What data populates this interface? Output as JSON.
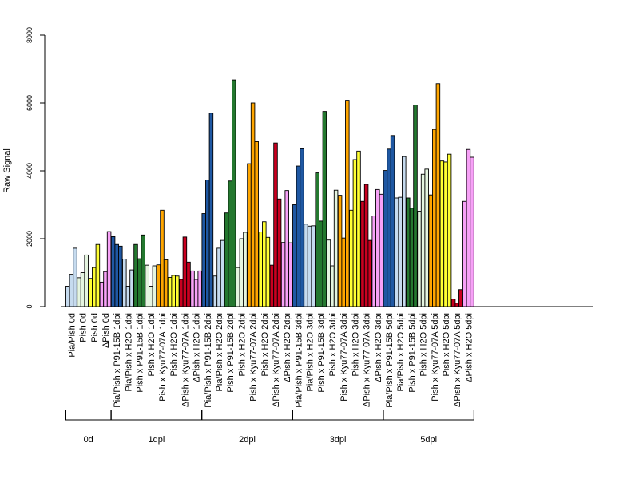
{
  "chart_data": {
    "type": "bar",
    "ylabel": "Raw Signal",
    "ylim": [
      0,
      8000
    ],
    "y_ticks": [
      0,
      2000,
      4000,
      6000,
      8000
    ],
    "grid": false,
    "legend": "none",
    "bar_stroke": "#000000",
    "groups": [
      {
        "label": "0d",
        "samples": [
          {
            "name": "Pia/Pish 0d",
            "color": "#c6dbef",
            "values": [
              600,
              950,
              1720
            ]
          },
          {
            "name": "Pish 0d",
            "color": "#e5f5e0",
            "values": [
              850,
              1000,
              1520
            ]
          },
          {
            "name": "Pish 0d",
            "color": "#ffff33",
            "values": [
              830,
              1150,
              1830
            ]
          },
          {
            "name": "ΔPish 0d",
            "color": "#f7a1f7",
            "values": [
              720,
              1030,
              2210
            ]
          }
        ]
      },
      {
        "label": "1dpi",
        "samples": [
          {
            "name": "Pia/Pish x P91-15B 1dpi",
            "color": "#1f58a3",
            "values": [
              2060,
              1830,
              1780
            ]
          },
          {
            "name": "Pia/Pish x H2O 1dpi",
            "color": "#c6dbef",
            "values": [
              1400,
              600,
              1080
            ]
          },
          {
            "name": "Pish x P91-15B 1dpi",
            "color": "#24782f",
            "values": [
              1830,
              1410,
              2110
            ]
          },
          {
            "name": "Pish x H2O 1dpi",
            "color": "#e5f5e0",
            "values": [
              1220,
              600,
              1200
            ]
          },
          {
            "name": "Pish x Kyu77-07A 1dpi",
            "color": "#ffa600",
            "values": [
              1230,
              2840,
              1380
            ]
          },
          {
            "name": "Pish x H2O 1dpi",
            "color": "#ffff33",
            "values": [
              860,
              920,
              900
            ]
          },
          {
            "name": "ΔPish x Kyu77-07A 1dpi",
            "color": "#c90020",
            "values": [
              800,
              2050,
              1310
            ]
          },
          {
            "name": "ΔPish x H2O 1dpi",
            "color": "#f7a1f7",
            "values": [
              1050,
              800,
              1050
            ]
          }
        ]
      },
      {
        "label": "2dpi",
        "samples": [
          {
            "name": "Pia/Pish x P91-15B 2dpi",
            "color": "#1f58a3",
            "values": [
              2740,
              3730,
              5700
            ]
          },
          {
            "name": "Pia/Pish x H2O 2dpi",
            "color": "#c6dbef",
            "values": [
              900,
              1720,
              1950
            ]
          },
          {
            "name": "Pish x P91-15B 2dpi",
            "color": "#24782f",
            "values": [
              2760,
              3700,
              6680
            ]
          },
          {
            "name": "Pish x H2O 2dpi",
            "color": "#e5f5e0",
            "values": [
              1150,
              2000,
              2190
            ]
          },
          {
            "name": "Pish x Kyu77-07A 2dpi",
            "color": "#ffa600",
            "values": [
              4210,
              6000,
              4860
            ]
          },
          {
            "name": "Pish x H2O 2dpi",
            "color": "#ffff33",
            "values": [
              2200,
              2500,
              2040
            ]
          },
          {
            "name": "ΔPish x Kyu77-07A 2dpi",
            "color": "#c90020",
            "values": [
              1220,
              4820,
              3170
            ]
          },
          {
            "name": "ΔPish x H2O 2dpi",
            "color": "#f7a1f7",
            "values": [
              1890,
              3420,
              1880
            ]
          }
        ]
      },
      {
        "label": "3dpi",
        "samples": [
          {
            "name": "Pia/Pish x P91-15B 3dpi",
            "color": "#1f58a3",
            "values": [
              3000,
              4140,
              4650
            ]
          },
          {
            "name": "Pia/Pish x H2O 3dpi",
            "color": "#c6dbef",
            "values": [
              2430,
              2370,
              2380
            ]
          },
          {
            "name": "Pish x P91-15B 3dpi",
            "color": "#24782f",
            "values": [
              3940,
              2520,
              5750
            ]
          },
          {
            "name": "Pish x H2O 3dpi",
            "color": "#e5f5e0",
            "values": [
              1960,
              1200,
              3430
            ]
          },
          {
            "name": "Pish x Kyu77-07A 3dpi",
            "color": "#ffa600",
            "values": [
              3280,
              2020,
              6080
            ]
          },
          {
            "name": "Pish x H2O 3dpi",
            "color": "#ffff33",
            "values": [
              2840,
              4330,
              4580
            ]
          },
          {
            "name": "ΔPish x Kyu77-07A 3dpi",
            "color": "#c90020",
            "values": [
              3100,
              3600,
              1950
            ]
          },
          {
            "name": "ΔPish x H2O 3dpi",
            "color": "#f7a1f7",
            "values": [
              2670,
              3450,
              3310
            ]
          }
        ]
      },
      {
        "label": "5dpi",
        "samples": [
          {
            "name": "Pia/Pish x P91-15B 5dpi",
            "color": "#1f58a3",
            "values": [
              4010,
              4640,
              5040
            ]
          },
          {
            "name": "Pia/Pish x H2O 5dpi",
            "color": "#c6dbef",
            "values": [
              3200,
              3220,
              4420
            ]
          },
          {
            "name": "Pish x P91-15B 5dpi",
            "color": "#24782f",
            "values": [
              3200,
              2900,
              5940
            ]
          },
          {
            "name": "Pish x H2O 5dpi",
            "color": "#e5f5e0",
            "values": [
              2810,
              3900,
              4050
            ]
          },
          {
            "name": "Pish x Kyu77-07A 5dpi",
            "color": "#ffa600",
            "values": [
              3290,
              5220,
              6570
            ]
          },
          {
            "name": "Pish x H2O 5dpi",
            "color": "#ffff33",
            "values": [
              4290,
              4260,
              4490
            ]
          },
          {
            "name": "ΔPish x Kyu77-07A 5dpi",
            "color": "#c90020",
            "values": [
              220,
              100,
              500
            ]
          },
          {
            "name": "ΔPish x H2O 5dpi",
            "color": "#f7a1f7",
            "values": [
              3100,
              4630,
              4400
            ]
          }
        ]
      }
    ]
  }
}
